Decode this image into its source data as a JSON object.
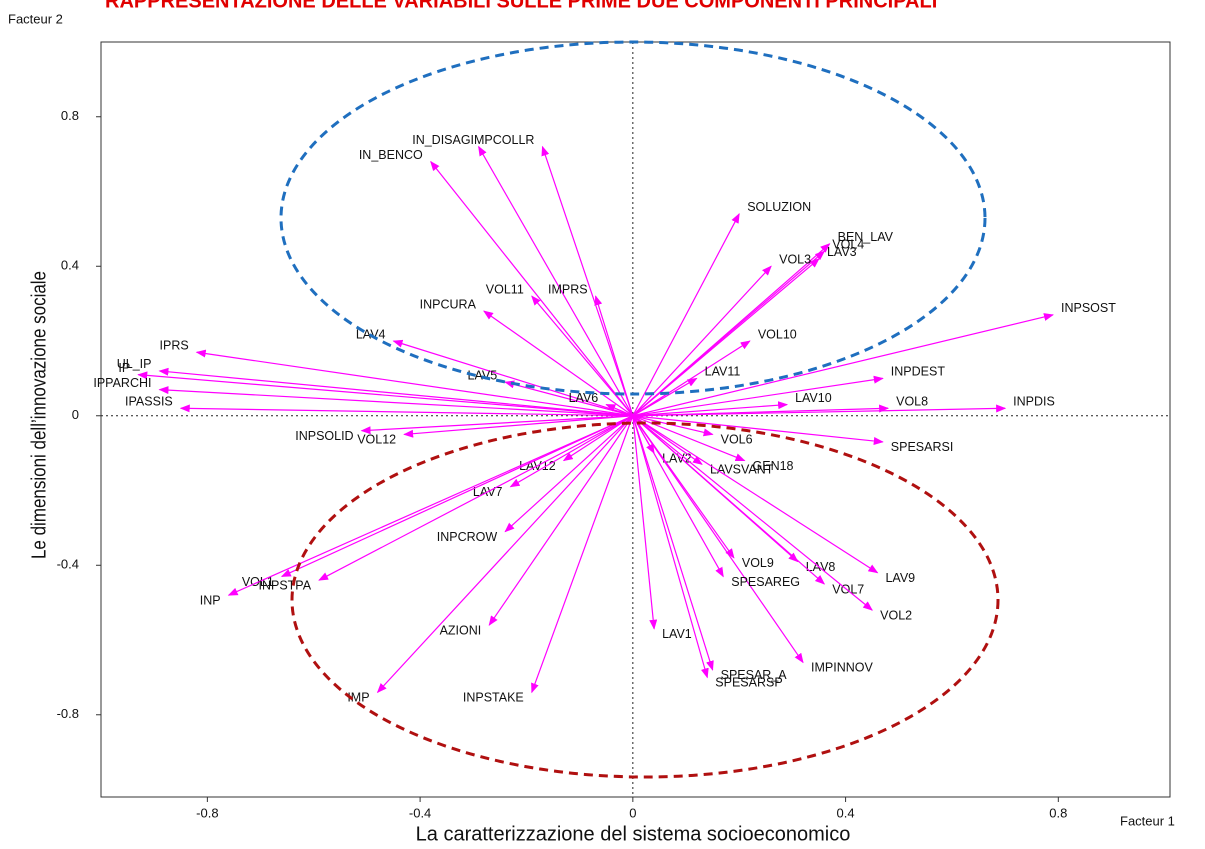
{
  "chart_data": {
    "type": "vector",
    "title": "RAPPRESENTAZIONE DELLE VARIABILI SULLE PRIME DUE COMPONENTI PRINCIPALI",
    "x_axis_name": "Facteur 1",
    "y_axis_name": "Facteur 2",
    "x_label": "La caratterizzazione del sistema socioeconomico",
    "y_label": "Le dimensioni dell’innovazione sociale",
    "color": "#ff00ff",
    "xlim": [
      -1.0,
      1.01
    ],
    "ylim": [
      -1.02,
      1.0
    ],
    "xticks": [
      -0.8,
      -0.4,
      0,
      0.4,
      0.8
    ],
    "yticks": [
      -0.8,
      -0.4,
      0,
      0.4,
      0.8
    ],
    "points": [
      {
        "name": "IN_BENCO",
        "x": -0.38,
        "y": 0.68
      },
      {
        "name": "IN_DISAG",
        "x": -0.29,
        "y": 0.72
      },
      {
        "name": "IMPCOLLR",
        "x": -0.17,
        "y": 0.72
      },
      {
        "name": "SOLUZION",
        "x": 0.2,
        "y": 0.54
      },
      {
        "name": "BEN_LAV",
        "x": 0.37,
        "y": 0.46
      },
      {
        "name": "VOL4",
        "x": 0.36,
        "y": 0.44
      },
      {
        "name": "LAV3",
        "x": 0.35,
        "y": 0.42
      },
      {
        "name": "VOL3",
        "x": 0.26,
        "y": 0.4
      },
      {
        "name": "VOL11",
        "x": -0.19,
        "y": 0.32
      },
      {
        "name": "IMPRS",
        "x": -0.07,
        "y": 0.32
      },
      {
        "name": "INPCURA",
        "x": -0.28,
        "y": 0.28
      },
      {
        "name": "INPSOST",
        "x": 0.79,
        "y": 0.27
      },
      {
        "name": "VOL10",
        "x": 0.22,
        "y": 0.2
      },
      {
        "name": "IPRS",
        "x": -0.82,
        "y": 0.17
      },
      {
        "name": "LAV4",
        "x": -0.45,
        "y": 0.2
      },
      {
        "name": "UL_IP",
        "x": -0.89,
        "y": 0.12
      },
      {
        "name": "IP",
        "x": -0.93,
        "y": 0.11
      },
      {
        "name": "IPPARCHI",
        "x": -0.89,
        "y": 0.07
      },
      {
        "name": "IPASSIS",
        "x": -0.85,
        "y": 0.02
      },
      {
        "name": "LAV5",
        "x": -0.24,
        "y": 0.09
      },
      {
        "name": "LAV6",
        "x": -0.05,
        "y": 0.03
      },
      {
        "name": "LAV11",
        "x": 0.12,
        "y": 0.1
      },
      {
        "name": "INPDEST",
        "x": 0.47,
        "y": 0.1
      },
      {
        "name": "LAV10",
        "x": 0.29,
        "y": 0.03
      },
      {
        "name": "VOL8",
        "x": 0.48,
        "y": 0.02
      },
      {
        "name": "INPDIS",
        "x": 0.7,
        "y": 0.02
      },
      {
        "name": "SPESARSI",
        "x": 0.47,
        "y": -0.07
      },
      {
        "name": "VOL6",
        "x": 0.15,
        "y": -0.05
      },
      {
        "name": "GEN18",
        "x": 0.21,
        "y": -0.12
      },
      {
        "name": "LAV2",
        "x": 0.04,
        "y": -0.1
      },
      {
        "name": "LAVSVANT",
        "x": 0.13,
        "y": -0.13
      },
      {
        "name": "INPSOLID",
        "x": -0.51,
        "y": -0.04
      },
      {
        "name": "VOL12",
        "x": -0.43,
        "y": -0.05
      },
      {
        "name": "LAV12",
        "x": -0.13,
        "y": -0.12
      },
      {
        "name": "LAV7",
        "x": -0.23,
        "y": -0.19
      },
      {
        "name": "INPCROW",
        "x": -0.24,
        "y": -0.31
      },
      {
        "name": "VOL1",
        "x": -0.66,
        "y": -0.43
      },
      {
        "name": "INP",
        "x": -0.76,
        "y": -0.48
      },
      {
        "name": "INPSTPA",
        "x": -0.59,
        "y": -0.44
      },
      {
        "name": "AZIONI",
        "x": -0.27,
        "y": -0.56
      },
      {
        "name": "IMP",
        "x": -0.48,
        "y": -0.74
      },
      {
        "name": "INPSTAKE",
        "x": -0.19,
        "y": -0.74
      },
      {
        "name": "LAV1",
        "x": 0.04,
        "y": -0.57
      },
      {
        "name": "SPESARSP",
        "x": 0.14,
        "y": -0.7
      },
      {
        "name": "SPESAR_A",
        "x": 0.15,
        "y": -0.68
      },
      {
        "name": "IMPINNOV",
        "x": 0.32,
        "y": -0.66
      },
      {
        "name": "SPESAREG",
        "x": 0.17,
        "y": -0.43
      },
      {
        "name": "VOL9",
        "x": 0.19,
        "y": -0.38
      },
      {
        "name": "LAV8",
        "x": 0.31,
        "y": -0.39
      },
      {
        "name": "VOL7",
        "x": 0.36,
        "y": -0.45
      },
      {
        "name": "LAV9",
        "x": 0.46,
        "y": -0.42
      },
      {
        "name": "VOL2",
        "x": 0.45,
        "y": -0.52
      }
    ]
  }
}
